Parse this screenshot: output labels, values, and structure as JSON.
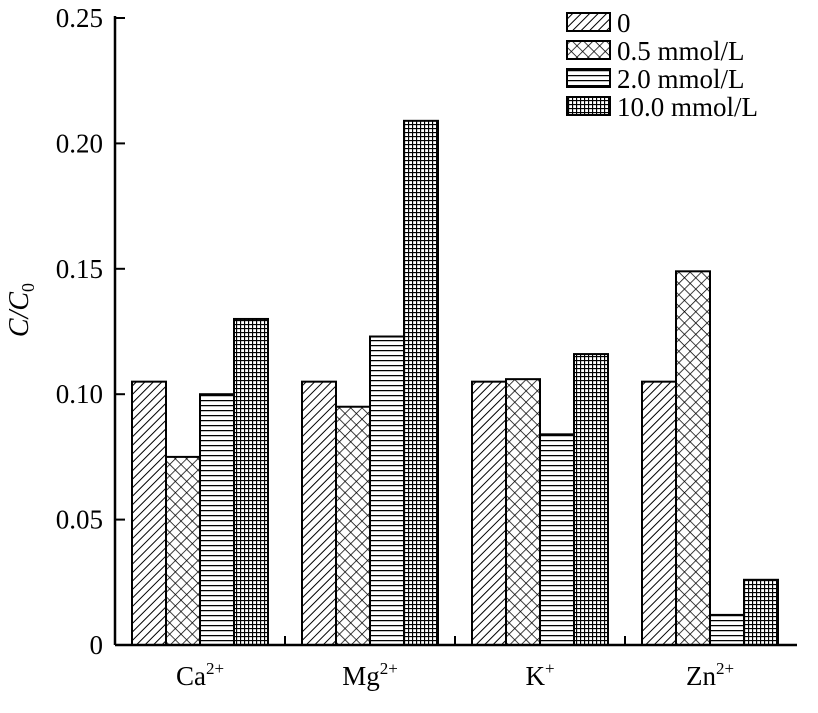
{
  "chart_data": {
    "type": "bar",
    "title": "",
    "xlabel": "",
    "ylabel": {
      "base": "C/C",
      "sub": "0"
    },
    "ylim": [
      0,
      0.25
    ],
    "yticks": [
      "0",
      "0.05",
      "0.10",
      "0.15",
      "0.20",
      "0.25"
    ],
    "ytick_values": [
      0,
      0.05,
      0.1,
      0.15,
      0.2,
      0.25
    ],
    "grid": false,
    "legend_position": "top-right",
    "categories": [
      {
        "base": "Ca",
        "sup": "2+"
      },
      {
        "base": "Mg",
        "sup": "2+"
      },
      {
        "base": "K",
        "sup": "+"
      },
      {
        "base": "Zn",
        "sup": "2+"
      }
    ],
    "series": [
      {
        "name": "0",
        "pattern": "diagonal-hatch",
        "values": [
          0.105,
          0.105,
          0.105,
          0.105
        ]
      },
      {
        "name": "0.5 mmol/L",
        "pattern": "cross-hatch",
        "values": [
          0.075,
          0.095,
          0.106,
          0.149
        ]
      },
      {
        "name": "2.0 mmol/L",
        "pattern": "horizontal-lines",
        "values": [
          0.1,
          0.123,
          0.084,
          0.012
        ]
      },
      {
        "name": "10.0 mmol/L",
        "pattern": "grid",
        "values": [
          0.13,
          0.209,
          0.116,
          0.026
        ]
      }
    ],
    "colors": {
      "stroke": "#000000",
      "fill": "#ffffff"
    }
  }
}
